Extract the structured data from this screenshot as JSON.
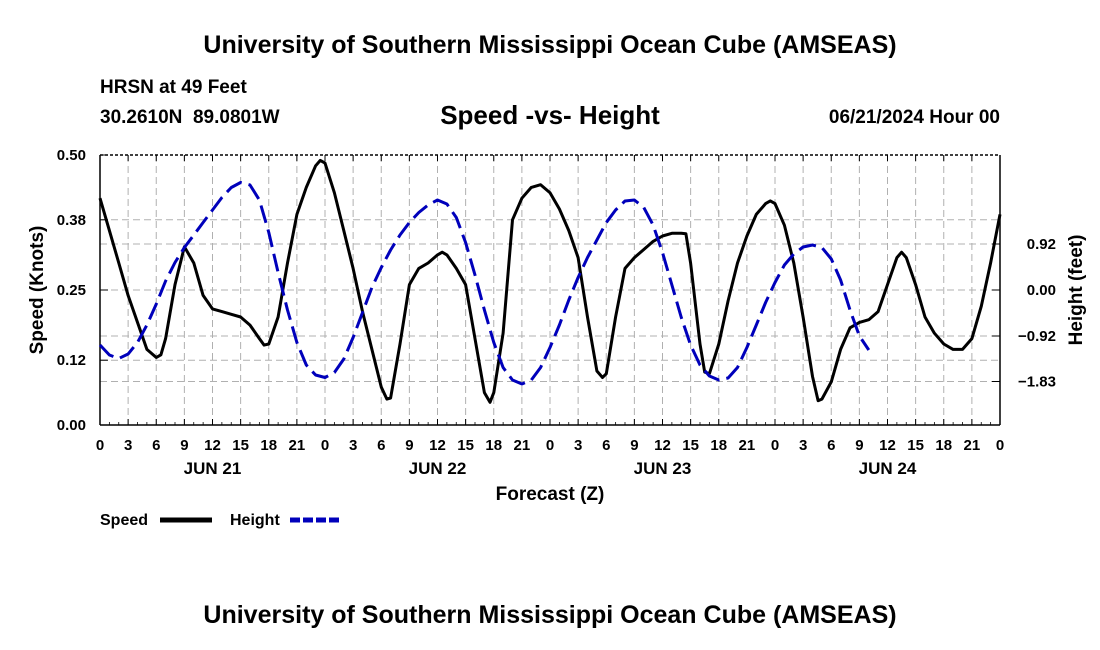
{
  "header": {
    "title": "University of Southern Mississippi Ocean Cube (AMSEAS)",
    "station": "HRSN at 49 Feet",
    "coords": "30.2610N  89.0801W",
    "date": "06/21/2024 Hour 00"
  },
  "footer": {
    "title": "University of Southern Mississippi Ocean Cube (AMSEAS)"
  },
  "chart_data": {
    "type": "line",
    "title": "Speed -vs- Height",
    "xlabel": "Forecast (Z)",
    "ylabel": "Speed (Knots)",
    "ylabel_right": "Height (feet)",
    "x_range_hours": [
      0,
      96
    ],
    "x_tick_labels": [
      "0",
      "3",
      "6",
      "9",
      "12",
      "15",
      "18",
      "21",
      "0",
      "3",
      "6",
      "9",
      "12",
      "15",
      "18",
      "21",
      "0",
      "3",
      "6",
      "9",
      "12",
      "15",
      "18",
      "21",
      "0",
      "3",
      "6",
      "9",
      "12",
      "15",
      "18",
      "21",
      "0"
    ],
    "day_labels": [
      {
        "hour": 12,
        "label": "JUN 21"
      },
      {
        "hour": 36,
        "label": "JUN 22"
      },
      {
        "hour": 60,
        "label": "JUN 23"
      },
      {
        "hour": 84,
        "label": "JUN 24"
      }
    ],
    "ylim": [
      0,
      0.5
    ],
    "y_ticks": [
      0.0,
      0.12,
      0.25,
      0.38,
      0.5
    ],
    "y_tick_labels": [
      "0.00",
      "0.12",
      "0.25",
      "0.38",
      "0.50"
    ],
    "y2lim": [
      -2.7,
      2.7
    ],
    "y2_ticks": [
      0.92,
      0.0,
      -0.92,
      -1.83
    ],
    "y2_tick_labels": [
      "0.92",
      "0.00",
      "−0.92",
      "−1.83"
    ],
    "grid": true,
    "legend": [
      {
        "label": "Speed",
        "color": "#000000",
        "style": "solid"
      },
      {
        "label": "Height",
        "color": "#0000bb",
        "style": "dashed"
      }
    ],
    "series": [
      {
        "name": "Speed",
        "axis": "left",
        "color": "#000000",
        "style": "solid",
        "points": [
          [
            0,
            0.42
          ],
          [
            1,
            0.36
          ],
          [
            2,
            0.3
          ],
          [
            3,
            0.24
          ],
          [
            4,
            0.19
          ],
          [
            5,
            0.14
          ],
          [
            6,
            0.125
          ],
          [
            6.5,
            0.13
          ],
          [
            7,
            0.16
          ],
          [
            8,
            0.26
          ],
          [
            9,
            0.33
          ],
          [
            10,
            0.3
          ],
          [
            11,
            0.24
          ],
          [
            12,
            0.215
          ],
          [
            13,
            0.21
          ],
          [
            14,
            0.205
          ],
          [
            15,
            0.2
          ],
          [
            16,
            0.185
          ],
          [
            17,
            0.16
          ],
          [
            17.5,
            0.148
          ],
          [
            18,
            0.15
          ],
          [
            19,
            0.2
          ],
          [
            20,
            0.3
          ],
          [
            21,
            0.39
          ],
          [
            22,
            0.44
          ],
          [
            23,
            0.48
          ],
          [
            23.5,
            0.49
          ],
          [
            24,
            0.485
          ],
          [
            25,
            0.43
          ],
          [
            26,
            0.36
          ],
          [
            27,
            0.29
          ],
          [
            28,
            0.21
          ],
          [
            29,
            0.14
          ],
          [
            30,
            0.07
          ],
          [
            30.6,
            0.048
          ],
          [
            31,
            0.05
          ],
          [
            32,
            0.15
          ],
          [
            33,
            0.26
          ],
          [
            34,
            0.29
          ],
          [
            35,
            0.3
          ],
          [
            36,
            0.315
          ],
          [
            36.5,
            0.32
          ],
          [
            37,
            0.315
          ],
          [
            38,
            0.29
          ],
          [
            39,
            0.26
          ],
          [
            40,
            0.16
          ],
          [
            41,
            0.06
          ],
          [
            41.6,
            0.042
          ],
          [
            42,
            0.06
          ],
          [
            43,
            0.17
          ],
          [
            44,
            0.38
          ],
          [
            45,
            0.42
          ],
          [
            46,
            0.44
          ],
          [
            47,
            0.445
          ],
          [
            48,
            0.43
          ],
          [
            49,
            0.4
          ],
          [
            50,
            0.36
          ],
          [
            51,
            0.31
          ],
          [
            52,
            0.2
          ],
          [
            53,
            0.1
          ],
          [
            53.6,
            0.088
          ],
          [
            54,
            0.095
          ],
          [
            55,
            0.2
          ],
          [
            56,
            0.29
          ],
          [
            57,
            0.31
          ],
          [
            58,
            0.325
          ],
          [
            59,
            0.34
          ],
          [
            60,
            0.35
          ],
          [
            61,
            0.355
          ],
          [
            62,
            0.355
          ],
          [
            62.5,
            0.354
          ],
          [
            63,
            0.3
          ],
          [
            64,
            0.15
          ],
          [
            64.5,
            0.098
          ],
          [
            65,
            0.095
          ],
          [
            66,
            0.15
          ],
          [
            67,
            0.23
          ],
          [
            68,
            0.3
          ],
          [
            69,
            0.35
          ],
          [
            70,
            0.39
          ],
          [
            71,
            0.41
          ],
          [
            71.5,
            0.415
          ],
          [
            72,
            0.41
          ],
          [
            73,
            0.37
          ],
          [
            74,
            0.3
          ],
          [
            75,
            0.2
          ],
          [
            76,
            0.09
          ],
          [
            76.6,
            0.045
          ],
          [
            77,
            0.048
          ],
          [
            78,
            0.08
          ],
          [
            79,
            0.14
          ],
          [
            80,
            0.18
          ],
          [
            81,
            0.19
          ],
          [
            82,
            0.195
          ],
          [
            83,
            0.21
          ],
          [
            84,
            0.26
          ],
          [
            85,
            0.31
          ],
          [
            85.5,
            0.32
          ],
          [
            86,
            0.31
          ],
          [
            87,
            0.26
          ],
          [
            88,
            0.2
          ],
          [
            89,
            0.17
          ],
          [
            90,
            0.15
          ],
          [
            91,
            0.14
          ],
          [
            92,
            0.14
          ],
          [
            93,
            0.16
          ],
          [
            94,
            0.22
          ],
          [
            95,
            0.3
          ],
          [
            96,
            0.39
          ]
        ]
      },
      {
        "name": "Height",
        "axis": "right",
        "color": "#0000bb",
        "style": "dashed",
        "points": [
          [
            0,
            -1.1
          ],
          [
            1,
            -1.3
          ],
          [
            2,
            -1.37
          ],
          [
            3,
            -1.28
          ],
          [
            4,
            -1.05
          ],
          [
            5,
            -0.7
          ],
          [
            6,
            -0.28
          ],
          [
            7,
            0.18
          ],
          [
            8,
            0.55
          ],
          [
            9,
            0.85
          ],
          [
            10,
            1.1
          ],
          [
            11,
            1.35
          ],
          [
            12,
            1.6
          ],
          [
            13,
            1.85
          ],
          [
            14,
            2.05
          ],
          [
            15,
            2.15
          ],
          [
            16,
            2.1
          ],
          [
            17,
            1.8
          ],
          [
            18,
            1.15
          ],
          [
            19,
            0.35
          ],
          [
            20,
            -0.4
          ],
          [
            21,
            -1.05
          ],
          [
            22,
            -1.5
          ],
          [
            23,
            -1.7
          ],
          [
            24,
            -1.75
          ],
          [
            25,
            -1.65
          ],
          [
            26,
            -1.38
          ],
          [
            27,
            -0.95
          ],
          [
            28,
            -0.45
          ],
          [
            29,
            0.05
          ],
          [
            30,
            0.45
          ],
          [
            31,
            0.8
          ],
          [
            32,
            1.1
          ],
          [
            33,
            1.35
          ],
          [
            34,
            1.55
          ],
          [
            35,
            1.7
          ],
          [
            36,
            1.8
          ],
          [
            37,
            1.72
          ],
          [
            38,
            1.45
          ],
          [
            39,
            0.95
          ],
          [
            40,
            0.3
          ],
          [
            41,
            -0.4
          ],
          [
            42,
            -1.05
          ],
          [
            43,
            -1.55
          ],
          [
            44,
            -1.8
          ],
          [
            45,
            -1.88
          ],
          [
            46,
            -1.8
          ],
          [
            47,
            -1.55
          ],
          [
            48,
            -1.15
          ],
          [
            49,
            -0.7
          ],
          [
            50,
            -0.2
          ],
          [
            51,
            0.25
          ],
          [
            52,
            0.65
          ],
          [
            53,
            1.0
          ],
          [
            54,
            1.35
          ],
          [
            55,
            1.6
          ],
          [
            56,
            1.78
          ],
          [
            57,
            1.8
          ],
          [
            58,
            1.65
          ],
          [
            59,
            1.3
          ],
          [
            60,
            0.75
          ],
          [
            61,
            0.1
          ],
          [
            62,
            -0.55
          ],
          [
            63,
            -1.1
          ],
          [
            64,
            -1.5
          ],
          [
            65,
            -1.72
          ],
          [
            66,
            -1.8
          ],
          [
            67,
            -1.76
          ],
          [
            68,
            -1.55
          ],
          [
            69,
            -1.15
          ],
          [
            70,
            -0.7
          ],
          [
            71,
            -0.25
          ],
          [
            72,
            0.15
          ],
          [
            73,
            0.5
          ],
          [
            74,
            0.72
          ],
          [
            75,
            0.86
          ],
          [
            76,
            0.9
          ],
          [
            77,
            0.85
          ],
          [
            78,
            0.62
          ],
          [
            79,
            0.2
          ],
          [
            80,
            -0.4
          ],
          [
            81,
            -0.92
          ],
          [
            82,
            -1.2
          ]
        ]
      }
    ]
  }
}
